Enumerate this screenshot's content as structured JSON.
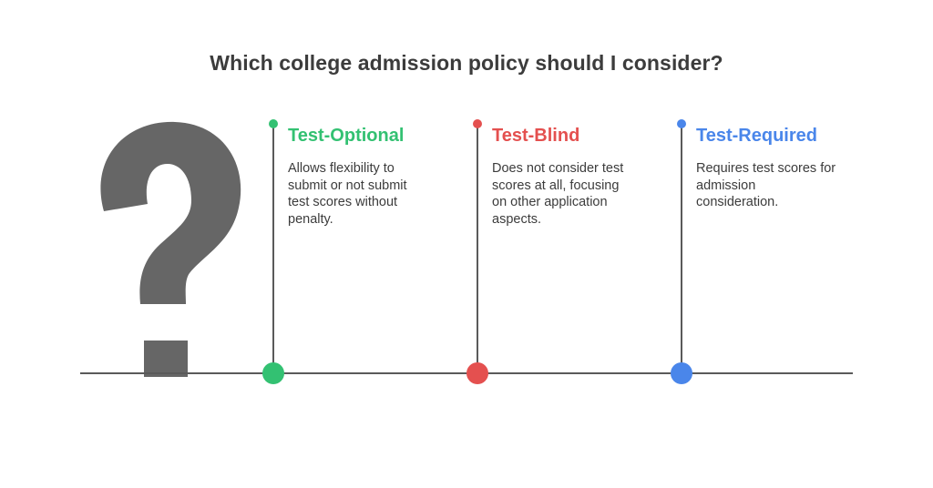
{
  "title": "Which college admission policy should I consider?",
  "icon": "question-mark-icon",
  "options": [
    {
      "title": "Test-Optional",
      "lines": [
        "Allows flexibility to",
        "submit or not submit",
        "test scores without",
        "penalty."
      ],
      "color": "#33c172"
    },
    {
      "title": "Test-Blind",
      "lines": [
        "Does not consider test",
        "scores at all, focusing",
        "on other application",
        "aspects."
      ],
      "color": "#e4504f"
    },
    {
      "title": "Test-Required",
      "lines": [
        "Requires test scores for",
        "admission",
        "consideration."
      ],
      "color": "#4a86ea"
    }
  ]
}
